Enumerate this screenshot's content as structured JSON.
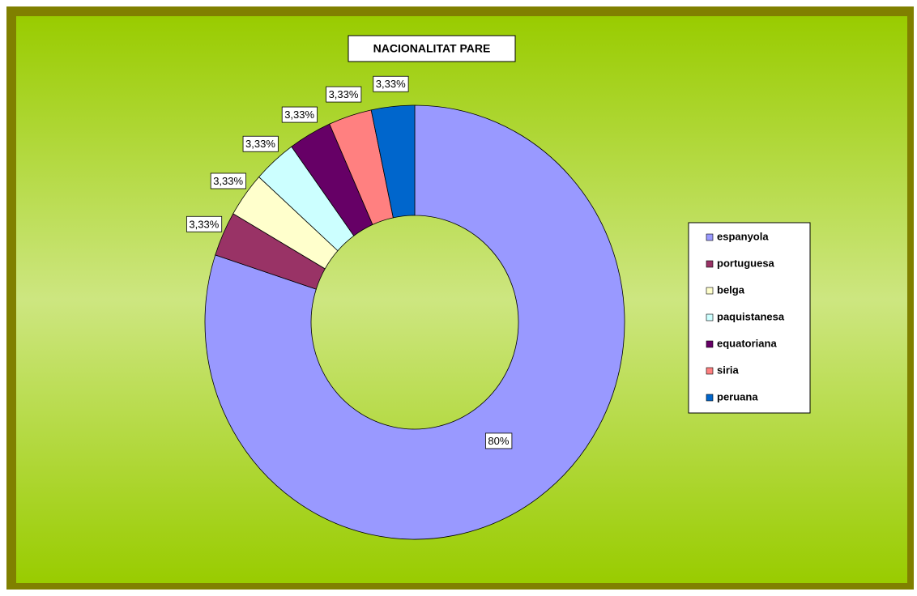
{
  "chart_data": {
    "type": "donut",
    "title": "NACIONALITAT PARE",
    "categories": [
      "espanyola",
      "portuguesa",
      "belga",
      "paquistanesa",
      "equatoriana",
      "siria",
      "peruana"
    ],
    "values": [
      80,
      3.33,
      3.33,
      3.33,
      3.33,
      3.33,
      3.33
    ],
    "value_labels": [
      "80%",
      "3,33%",
      "3,33%",
      "3,33%",
      "3,33%",
      "3,33%",
      "3,33%"
    ],
    "colors": [
      "#9999ff",
      "#993366",
      "#ffffcc",
      "#ccffff",
      "#660066",
      "#ff8080",
      "#0066cc"
    ],
    "legend": "right"
  }
}
